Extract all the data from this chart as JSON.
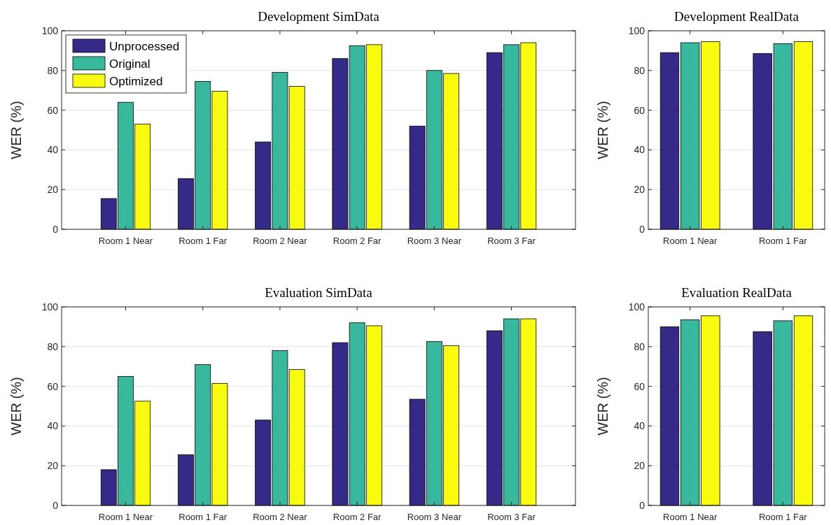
{
  "chart_data": [
    {
      "type": "bar",
      "title": "Development SimData",
      "ylabel": "WER (%)",
      "categories": [
        "Room 1 Near",
        "Room 1 Far",
        "Room 2 Near",
        "Room 2 Far",
        "Room 3 Near",
        "Room 3 Far"
      ],
      "series": [
        {
          "name": "Unprocessed",
          "color": "#352a87",
          "values": [
            15.5,
            25.5,
            44,
            86,
            52,
            89
          ]
        },
        {
          "name": "Original",
          "color": "#38b99e",
          "values": [
            64,
            74.5,
            79,
            92.5,
            80,
            93
          ]
        },
        {
          "name": "Optimized",
          "color": "#f9fb0e",
          "values": [
            53,
            69.5,
            72,
            93,
            78.5,
            94
          ]
        }
      ],
      "ylim": [
        0,
        100
      ],
      "yticks": [
        0,
        20,
        40,
        60,
        80,
        100
      ],
      "grid": "y",
      "legend": "top left"
    },
    {
      "type": "bar",
      "title": "Development RealData",
      "ylabel": "WER (%)",
      "categories": [
        "Room 1 Near",
        "Room 1 Far"
      ],
      "series": [
        {
          "color": "#352a87",
          "values": [
            89,
            88.5
          ]
        },
        {
          "color": "#38b99e",
          "values": [
            94,
            93.5
          ]
        },
        {
          "color": "#f9fb0e",
          "values": [
            94.5,
            94.5
          ]
        }
      ],
      "ylim": [
        0,
        100
      ],
      "yticks": [
        0,
        20,
        40,
        60,
        80,
        100
      ],
      "grid": "y"
    },
    {
      "type": "bar",
      "title": "Evaluation SimData",
      "ylabel": "WER (%)",
      "categories": [
        "Room 1 Near",
        "Room 1 Far",
        "Room 2 Near",
        "Room 2 Far",
        "Room 3 Near",
        "Room 3 Far"
      ],
      "series": [
        {
          "color": "#352a87",
          "values": [
            18,
            25.5,
            43,
            82,
            53.5,
            88
          ]
        },
        {
          "color": "#38b99e",
          "values": [
            65,
            71,
            78,
            92,
            82.5,
            94
          ]
        },
        {
          "color": "#f9fb0e",
          "values": [
            52.5,
            61.5,
            68.5,
            90.5,
            80.5,
            94
          ]
        }
      ],
      "ylim": [
        0,
        100
      ],
      "yticks": [
        0,
        20,
        40,
        60,
        80,
        100
      ],
      "grid": "y"
    },
    {
      "type": "bar",
      "title": "Evaluation RealData",
      "ylabel": "WER (%)",
      "categories": [
        "Room 1 Near",
        "Room 1 Far"
      ],
      "series": [
        {
          "color": "#352a87",
          "values": [
            90,
            87.5
          ]
        },
        {
          "color": "#38b99e",
          "values": [
            93.5,
            93
          ]
        },
        {
          "color": "#f9fb0e",
          "values": [
            95.5,
            95.5
          ]
        }
      ],
      "ylim": [
        0,
        100
      ],
      "yticks": [
        0,
        20,
        40,
        60,
        80,
        100
      ],
      "grid": "y"
    }
  ]
}
